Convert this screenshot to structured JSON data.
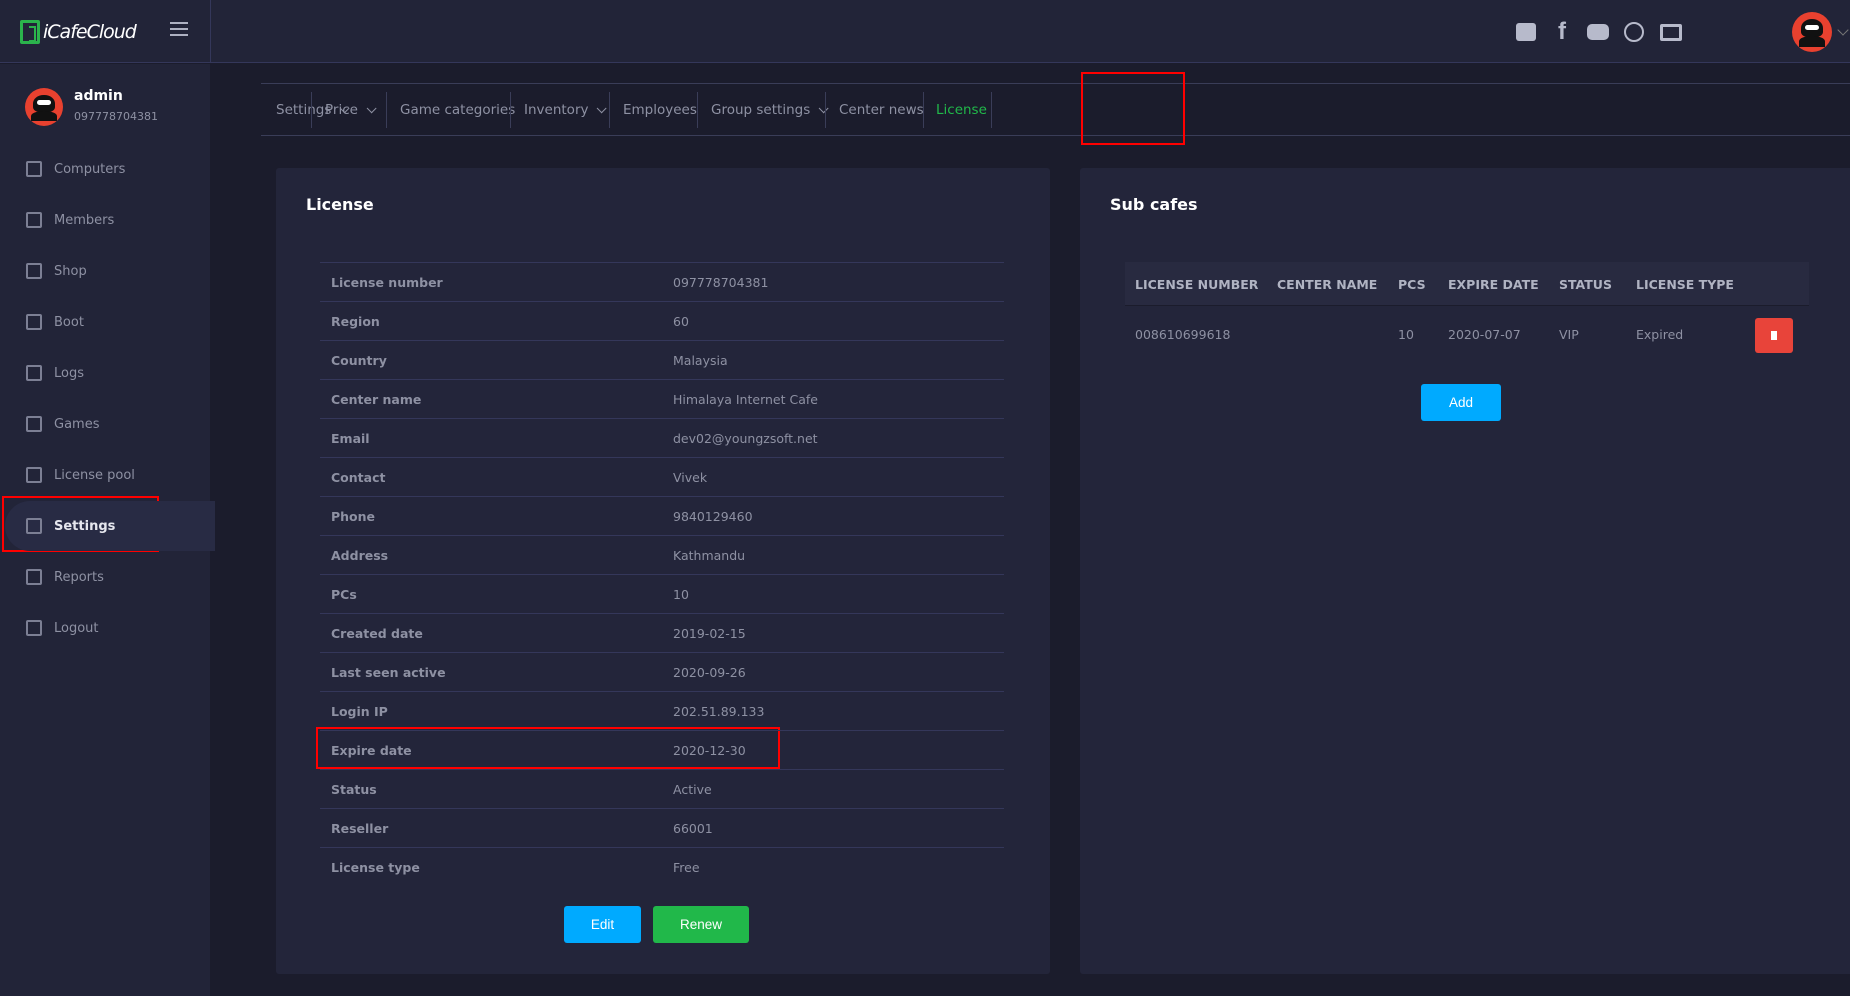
{
  "app": {
    "title": "iCafeCloud"
  },
  "topbar": {
    "icons": [
      "discord-icon",
      "facebook-icon",
      "youtube-icon",
      "globe-icon",
      "book-icon"
    ]
  },
  "user": {
    "name": "admin",
    "id": "097778704381"
  },
  "sidebar": {
    "items": [
      {
        "label": "Computers",
        "icon": "monitor-icon"
      },
      {
        "label": "Members",
        "icon": "users-icon"
      },
      {
        "label": "Shop",
        "icon": "cart-icon"
      },
      {
        "label": "Boot",
        "icon": "windows-icon"
      },
      {
        "label": "Logs",
        "icon": "calendar-icon"
      },
      {
        "label": "Games",
        "icon": "gamepad-icon"
      },
      {
        "label": "License pool",
        "icon": "award-icon"
      },
      {
        "label": "Settings",
        "icon": "settings-icon",
        "active": true
      },
      {
        "label": "Reports",
        "icon": "award-icon"
      },
      {
        "label": "Logout",
        "icon": "logout-icon"
      }
    ]
  },
  "tabs": [
    {
      "label": "Settings",
      "dropdown": true
    },
    {
      "label": "Price",
      "dropdown": true
    },
    {
      "label": "Game categories"
    },
    {
      "label": "Inventory",
      "dropdown": true
    },
    {
      "label": "Employees"
    },
    {
      "label": "Group settings",
      "dropdown": true
    },
    {
      "label": "Center news"
    },
    {
      "label": "License",
      "active": true
    }
  ],
  "license": {
    "title": "License",
    "rows": [
      {
        "k": "License number",
        "v": "097778704381"
      },
      {
        "k": "Region",
        "v": "60"
      },
      {
        "k": "Country",
        "v": "Malaysia"
      },
      {
        "k": "Center name",
        "v": "Himalaya Internet Cafe"
      },
      {
        "k": "Email",
        "v": "dev02@youngzsoft.net"
      },
      {
        "k": "Contact",
        "v": "Vivek"
      },
      {
        "k": "Phone",
        "v": "9840129460"
      },
      {
        "k": "Address",
        "v": "Kathmandu"
      },
      {
        "k": "PCs",
        "v": "10"
      },
      {
        "k": "Created date",
        "v": "2019-02-15"
      },
      {
        "k": "Last seen active",
        "v": "2020-09-26"
      },
      {
        "k": "Login IP",
        "v": "202.51.89.133"
      },
      {
        "k": "Expire date",
        "v": "2020-12-30"
      },
      {
        "k": "Status",
        "v": "Active"
      },
      {
        "k": "Reseller",
        "v": "66001"
      },
      {
        "k": "License type",
        "v": "Free"
      }
    ],
    "edit_label": "Edit",
    "renew_label": "Renew"
  },
  "subcafes": {
    "title": "Sub cafes",
    "columns": [
      "LICENSE NUMBER",
      "CENTER NAME",
      "PCS",
      "EXPIRE DATE",
      "STATUS",
      "LICENSE TYPE"
    ],
    "rows": [
      [
        "008610699618",
        "",
        "10",
        "2020-07-07",
        "VIP",
        "Expired"
      ]
    ],
    "add_label": "Add"
  },
  "colors": {
    "accent_green": "#21b84a",
    "accent_blue": "#00aaff",
    "danger": "#e8443a",
    "highlight": "#ff0000"
  }
}
